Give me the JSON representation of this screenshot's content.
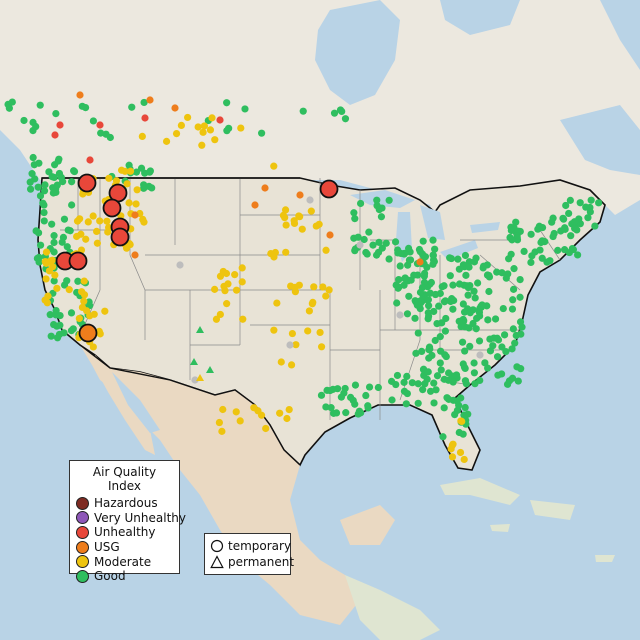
{
  "legend": {
    "title": "Air Quality Index",
    "categories": [
      {
        "key": "hazardous",
        "label": "Hazardous",
        "color": "#7e2b23"
      },
      {
        "key": "very_unhealthy",
        "label": "Very Unhealthy",
        "color": "#8e57b8"
      },
      {
        "key": "unhealthy",
        "label": "Unhealthy",
        "color": "#e8473a"
      },
      {
        "key": "usg",
        "label": "USG",
        "color": "#ee7d1c"
      },
      {
        "key": "moderate",
        "label": "Moderate",
        "color": "#eec40f"
      },
      {
        "key": "good",
        "label": "Good",
        "color": "#2fbe5f"
      }
    ]
  },
  "monitor_types": [
    {
      "key": "temporary",
      "label": "temporary",
      "shape": "circle-icon"
    },
    {
      "key": "permanent",
      "label": "permanent",
      "shape": "triangle-icon"
    }
  ],
  "colors": {
    "ocean": "#b9d3e6",
    "land": "#ece8df",
    "land_green": "#dfe5d1",
    "land_desert": "#ead9c2",
    "border": "#111111",
    "state_line": "#8a8a8a",
    "no_data": "#bdbdbd"
  }
}
